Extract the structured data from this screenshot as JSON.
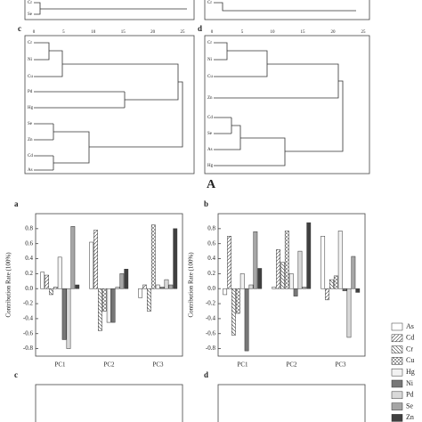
{
  "figure_label": "A",
  "dendrograms": [
    {
      "label": "c",
      "ticks": [
        "0",
        "5",
        "10",
        "15",
        "20",
        "25"
      ],
      "leaves": [
        "Cr",
        "Ni",
        "Cu",
        "Pd",
        "Hg",
        "Se",
        "Zn",
        "Cd",
        "As"
      ]
    },
    {
      "label": "d",
      "ticks": [
        "0",
        "5",
        "10",
        "15",
        "20",
        "25"
      ],
      "leaves": [
        "Cr",
        "Ni",
        "Cu",
        "Zn",
        "Cd",
        "Se",
        "As",
        "Hg"
      ]
    }
  ],
  "top_leaves": [
    "Cr",
    "Se",
    "Cr"
  ],
  "lower_panels": [
    "c",
    "d"
  ],
  "chart_data": [
    {
      "type": "bar",
      "panel": "a",
      "ylabel": "Contribution Rate (100%)",
      "categories": [
        "PC1",
        "PC2",
        "PC3"
      ],
      "ylim": [
        -0.9,
        1.0
      ],
      "yticks": [
        -0.8,
        -0.6,
        -0.4,
        -0.2,
        {
          "value": 0,
          "label": "0.0"
        },
        0.2,
        0.4,
        0.6,
        0.8
      ],
      "series": [
        {
          "name": "As",
          "color": "#ffffff",
          "values": [
            0.22,
            0.62,
            -0.12
          ]
        },
        {
          "name": "Cd",
          "color": "#ffffff",
          "hatch": "diag-right",
          "values": [
            0.18,
            0.78,
            0.05
          ]
        },
        {
          "name": "Cr",
          "color": "#ffffff",
          "hatch": "diag-left",
          "values": [
            -0.08,
            -0.56,
            -0.3
          ]
        },
        {
          "name": "Cu",
          "color": "#ffffff",
          "hatch": "cross",
          "values": [
            0.02,
            -0.3,
            0.85
          ]
        },
        {
          "name": "Hg",
          "color": "#f2f2f2",
          "values": [
            0.42,
            -0.45,
            0.05
          ]
        },
        {
          "name": "Ni",
          "color": "#777777",
          "values": [
            -0.68,
            -0.45,
            0.02
          ]
        },
        {
          "name": "Pd",
          "color": "#d9d9d9",
          "values": [
            -0.8,
            0.02,
            0.12
          ]
        },
        {
          "name": "Se",
          "color": "#a6a6a6",
          "values": [
            0.83,
            0.2,
            0.05
          ]
        },
        {
          "name": "Zn",
          "color": "#404040",
          "values": [
            0.05,
            0.26,
            0.8
          ]
        }
      ]
    },
    {
      "type": "bar",
      "panel": "b",
      "ylabel": "Contribution Rate (100%)",
      "categories": [
        "PC1",
        "PC2",
        "PC3"
      ],
      "ylim": [
        -0.9,
        1.0
      ],
      "yticks": [
        -0.8,
        -0.6,
        -0.4,
        -0.2,
        {
          "value": 0,
          "label": "0.0"
        },
        0.2,
        0.4,
        0.6,
        0.8
      ],
      "series": [
        {
          "name": "As",
          "color": "#ffffff",
          "values": [
            -0.08,
            0.02,
            0.7
          ]
        },
        {
          "name": "Cd",
          "color": "#ffffff",
          "hatch": "diag-right",
          "values": [
            0.7,
            0.52,
            -0.15
          ]
        },
        {
          "name": "Cr",
          "color": "#ffffff",
          "hatch": "diag-left",
          "values": [
            -0.62,
            0.35,
            0.12
          ]
        },
        {
          "name": "Cu",
          "color": "#ffffff",
          "hatch": "cross",
          "values": [
            -0.33,
            0.77,
            0.17
          ]
        },
        {
          "name": "Hg",
          "color": "#f2f2f2",
          "values": [
            0.2,
            0.2,
            0.77
          ]
        },
        {
          "name": "Ni",
          "color": "#777777",
          "values": [
            -0.83,
            -0.1,
            -0.03
          ]
        },
        {
          "name": "Pd",
          "color": "#d9d9d9",
          "values": [
            0.05,
            0.5,
            -0.65
          ]
        },
        {
          "name": "Se",
          "color": "#a6a6a6",
          "values": [
            0.76,
            0.02,
            0.43
          ]
        },
        {
          "name": "Zn",
          "color": "#404040",
          "values": [
            0.27,
            0.88,
            -0.05
          ]
        }
      ]
    }
  ]
}
